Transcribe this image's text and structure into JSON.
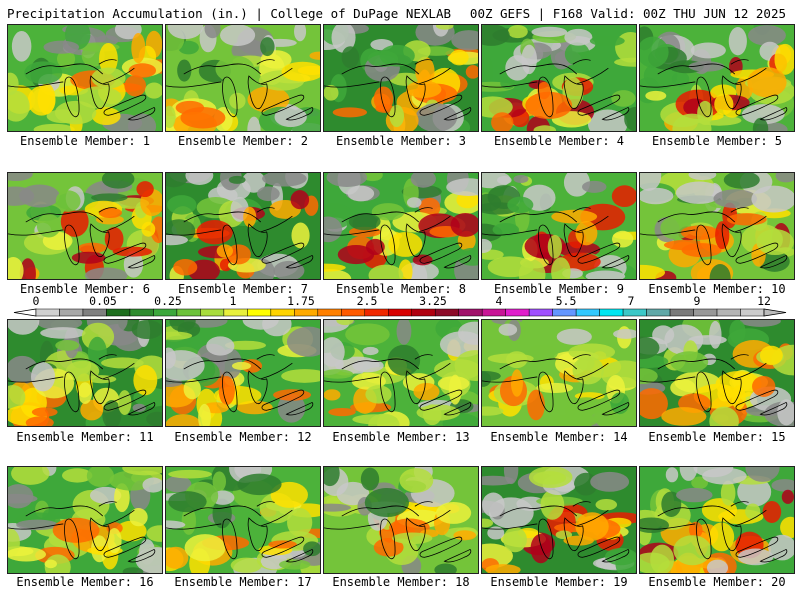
{
  "header": {
    "title": "Precipitation Accumulation (in.) | College of DuPage NEXLAB",
    "run_info": "00Z GEFS | F168 Valid: 00Z THU JUN 12 2025"
  },
  "colorbar": {
    "labels": [
      "0",
      "0.05",
      "0.25",
      "1",
      "1.75",
      "2.5",
      "3.25",
      "4",
      "5.5",
      "7",
      "9",
      "12"
    ],
    "colors": [
      "#d0d0d0",
      "#a8a8a8",
      "#808080",
      "#1e6e1e",
      "#2e8b2e",
      "#3da83d",
      "#6cc23a",
      "#a8dc3c",
      "#e8f03c",
      "#ffff00",
      "#ffd400",
      "#ffaa00",
      "#ff8000",
      "#ff5a00",
      "#f02800",
      "#d80000",
      "#b00010",
      "#8c0a28",
      "#a0106a",
      "#c81496",
      "#e01ecc",
      "#a050ff",
      "#6496ff",
      "#32c8ff",
      "#00e6f0",
      "#3cc8c8",
      "#60a8a8",
      "#7a7a7a",
      "#989898",
      "#b4b4b4",
      "#cccccc"
    ]
  },
  "members": [
    {
      "label": "Ensemble Member: 1"
    },
    {
      "label": "Ensemble Member: 2"
    },
    {
      "label": "Ensemble Member: 3"
    },
    {
      "label": "Ensemble Member: 4"
    },
    {
      "label": "Ensemble Member: 5"
    },
    {
      "label": "Ensemble Member: 6"
    },
    {
      "label": "Ensemble Member: 7"
    },
    {
      "label": "Ensemble Member: 8"
    },
    {
      "label": "Ensemble Member: 9"
    },
    {
      "label": "Ensemble Member: 10"
    },
    {
      "label": "Ensemble Member: 11"
    },
    {
      "label": "Ensemble Member: 12"
    },
    {
      "label": "Ensemble Member: 13"
    },
    {
      "label": "Ensemble Member: 14"
    },
    {
      "label": "Ensemble Member: 15"
    },
    {
      "label": "Ensemble Member: 16"
    },
    {
      "label": "Ensemble Member: 17"
    },
    {
      "label": "Ensemble Member: 18"
    },
    {
      "label": "Ensemble Member: 19"
    },
    {
      "label": "Ensemble Member: 20"
    }
  ]
}
